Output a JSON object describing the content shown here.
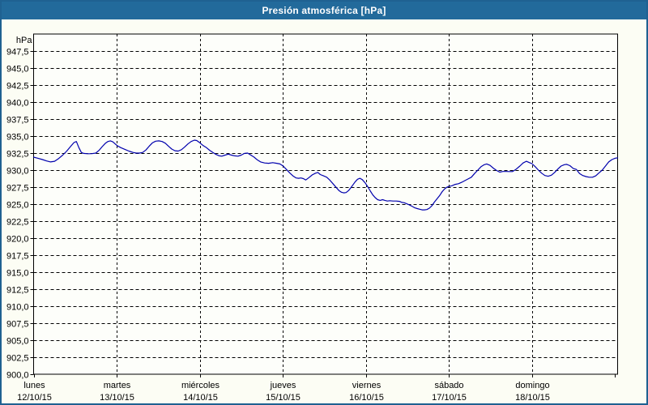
{
  "title_bar": {
    "text": "Presión atmosférica [hPa]",
    "background": "#226a9b",
    "text_color": "#ffffff"
  },
  "window": {
    "border_color": "#1f6191",
    "background": "#fcfdf4"
  },
  "chart_data": {
    "type": "line",
    "title": "Presión atmosférica [hPa]",
    "unit_label": "hPa",
    "ylabel": "hPa",
    "ylim": [
      900,
      950
    ],
    "ytick_step": 2.5,
    "yticks": [
      {
        "value": 947.5,
        "label": "947,5"
      },
      {
        "value": 945.0,
        "label": "945,0"
      },
      {
        "value": 942.5,
        "label": "942,5"
      },
      {
        "value": 940.0,
        "label": "940,0"
      },
      {
        "value": 937.5,
        "label": "937,5"
      },
      {
        "value": 935.0,
        "label": "935,0"
      },
      {
        "value": 932.5,
        "label": "932,5"
      },
      {
        "value": 930.0,
        "label": "930,0"
      },
      {
        "value": 927.5,
        "label": "927,5"
      },
      {
        "value": 925.0,
        "label": "925,0"
      },
      {
        "value": 922.5,
        "label": "922,5"
      },
      {
        "value": 920.0,
        "label": "920,0"
      },
      {
        "value": 917.5,
        "label": "917,5"
      },
      {
        "value": 915.0,
        "label": "915,0"
      },
      {
        "value": 912.5,
        "label": "912,5"
      },
      {
        "value": 910.0,
        "label": "910,0"
      },
      {
        "value": 907.5,
        "label": "907,5"
      },
      {
        "value": 905.0,
        "label": "905,0"
      },
      {
        "value": 902.5,
        "label": "902,5"
      },
      {
        "value": 900.0,
        "label": "900,0"
      }
    ],
    "x_days": [
      {
        "name": "lunes",
        "date": "12/10/15"
      },
      {
        "name": "martes",
        "date": "13/10/15"
      },
      {
        "name": "miércoles",
        "date": "14/10/15"
      },
      {
        "name": "jueves",
        "date": "15/10/15"
      },
      {
        "name": "viernes",
        "date": "16/10/15"
      },
      {
        "name": "sábado",
        "date": "17/10/15"
      },
      {
        "name": "domingo",
        "date": "18/10/15"
      }
    ],
    "total_days": 7.03,
    "grid": "dashed",
    "legend_position": "none",
    "line_color": "#0000ad",
    "series": [
      {
        "name": "Presión atmosférica",
        "points": [
          [
            0,
            931.9
          ],
          [
            0.049,
            931.75
          ],
          [
            0.107,
            931.55
          ],
          [
            0.156,
            931.35
          ],
          [
            0.204,
            931.2
          ],
          [
            0.253,
            931.3
          ],
          [
            0.301,
            931.7
          ],
          [
            0.35,
            932.2
          ],
          [
            0.399,
            932.8
          ],
          [
            0.447,
            933.5
          ],
          [
            0.486,
            934.05
          ],
          [
            0.515,
            934.2
          ],
          [
            0.545,
            933.3
          ],
          [
            0.574,
            932.6
          ],
          [
            0.603,
            932.45
          ],
          [
            0.651,
            932.4
          ],
          [
            0.7,
            932.42
          ],
          [
            0.749,
            932.5
          ],
          [
            0.788,
            932.9
          ],
          [
            0.826,
            933.45
          ],
          [
            0.865,
            933.95
          ],
          [
            0.894,
            934.2
          ],
          [
            0.924,
            934.3
          ],
          [
            0.953,
            934.15
          ],
          [
            0.982,
            933.85
          ],
          [
            1.011,
            933.55
          ],
          [
            1.05,
            933.3
          ],
          [
            1.099,
            933.05
          ],
          [
            1.147,
            932.8
          ],
          [
            1.196,
            932.6
          ],
          [
            1.235,
            932.5
          ],
          [
            1.274,
            932.5
          ],
          [
            1.313,
            932.6
          ],
          [
            1.351,
            932.95
          ],
          [
            1.39,
            933.5
          ],
          [
            1.429,
            934.0
          ],
          [
            1.468,
            934.25
          ],
          [
            1.507,
            934.3
          ],
          [
            1.546,
            934.2
          ],
          [
            1.585,
            933.95
          ],
          [
            1.624,
            933.5
          ],
          [
            1.662,
            933.1
          ],
          [
            1.701,
            932.85
          ],
          [
            1.74,
            932.8
          ],
          [
            1.779,
            933.0
          ],
          [
            1.818,
            933.4
          ],
          [
            1.857,
            933.85
          ],
          [
            1.896,
            934.2
          ],
          [
            1.935,
            934.4
          ],
          [
            1.964,
            934.35
          ],
          [
            2.003,
            934.0
          ],
          [
            2.042,
            933.6
          ],
          [
            2.081,
            933.3
          ],
          [
            2.12,
            932.9
          ],
          [
            2.158,
            932.6
          ],
          [
            2.197,
            932.3
          ],
          [
            2.236,
            932.1
          ],
          [
            2.265,
            932.05
          ],
          [
            2.304,
            932.2
          ],
          [
            2.343,
            932.35
          ],
          [
            2.382,
            932.2
          ],
          [
            2.421,
            932.1
          ],
          [
            2.46,
            932.05
          ],
          [
            2.499,
            932.2
          ],
          [
            2.538,
            932.45
          ],
          [
            2.576,
            932.5
          ],
          [
            2.615,
            932.2
          ],
          [
            2.654,
            931.9
          ],
          [
            2.693,
            931.5
          ],
          [
            2.732,
            931.2
          ],
          [
            2.781,
            931.05
          ],
          [
            2.829,
            931.0
          ],
          [
            2.878,
            931.1
          ],
          [
            2.926,
            931.0
          ],
          [
            2.965,
            930.9
          ],
          [
            3.004,
            930.6
          ],
          [
            3.043,
            930.1
          ],
          [
            3.082,
            929.6
          ],
          [
            3.121,
            929.15
          ],
          [
            3.16,
            928.85
          ],
          [
            3.189,
            928.8
          ],
          [
            3.218,
            928.85
          ],
          [
            3.247,
            928.75
          ],
          [
            3.276,
            928.55
          ],
          [
            3.315,
            928.9
          ],
          [
            3.354,
            929.3
          ],
          [
            3.393,
            929.55
          ],
          [
            3.422,
            929.65
          ],
          [
            3.451,
            929.35
          ],
          [
            3.49,
            929.15
          ],
          [
            3.529,
            928.95
          ],
          [
            3.568,
            928.5
          ],
          [
            3.607,
            927.95
          ],
          [
            3.646,
            927.4
          ],
          [
            3.675,
            927.0
          ],
          [
            3.704,
            926.75
          ],
          [
            3.733,
            926.65
          ],
          [
            3.762,
            926.7
          ],
          [
            3.792,
            927.0
          ],
          [
            3.83,
            927.6
          ],
          [
            3.869,
            928.25
          ],
          [
            3.899,
            928.65
          ],
          [
            3.928,
            928.8
          ],
          [
            3.957,
            928.6
          ],
          [
            3.996,
            928.05
          ],
          [
            4.025,
            927.5
          ],
          [
            4.054,
            926.9
          ],
          [
            4.083,
            926.35
          ],
          [
            4.112,
            925.95
          ],
          [
            4.141,
            925.65
          ],
          [
            4.171,
            925.55
          ],
          [
            4.2,
            925.65
          ],
          [
            4.229,
            925.55
          ],
          [
            4.258,
            925.45
          ],
          [
            4.287,
            925.5
          ],
          [
            4.326,
            925.45
          ],
          [
            4.365,
            925.45
          ],
          [
            4.404,
            925.4
          ],
          [
            4.433,
            925.25
          ],
          [
            4.462,
            925.2
          ],
          [
            4.491,
            925.05
          ],
          [
            4.52,
            924.9
          ],
          [
            4.559,
            924.65
          ],
          [
            4.589,
            924.45
          ],
          [
            4.618,
            924.35
          ],
          [
            4.647,
            924.25
          ],
          [
            4.676,
            924.15
          ],
          [
            4.705,
            924.15
          ],
          [
            4.734,
            924.2
          ],
          [
            4.764,
            924.4
          ],
          [
            4.793,
            924.75
          ],
          [
            4.822,
            925.25
          ],
          [
            4.851,
            925.7
          ],
          [
            4.89,
            926.3
          ],
          [
            4.919,
            926.85
          ],
          [
            4.948,
            927.25
          ],
          [
            4.977,
            927.5
          ],
          [
            4.997,
            927.6
          ],
          [
            5.036,
            927.7
          ],
          [
            5.075,
            927.9
          ],
          [
            5.114,
            928.0
          ],
          [
            5.152,
            928.2
          ],
          [
            5.191,
            928.45
          ],
          [
            5.23,
            928.7
          ],
          [
            5.269,
            928.95
          ],
          [
            5.308,
            929.5
          ],
          [
            5.347,
            930.0
          ],
          [
            5.386,
            930.5
          ],
          [
            5.425,
            930.8
          ],
          [
            5.454,
            930.9
          ],
          [
            5.493,
            930.7
          ],
          [
            5.532,
            930.3
          ],
          [
            5.571,
            929.95
          ],
          [
            5.61,
            929.7
          ],
          [
            5.649,
            929.8
          ],
          [
            5.687,
            929.8
          ],
          [
            5.726,
            929.78
          ],
          [
            5.765,
            929.78
          ],
          [
            5.804,
            930.1
          ],
          [
            5.853,
            930.6
          ],
          [
            5.892,
            931.05
          ],
          [
            5.931,
            931.3
          ],
          [
            5.969,
            931.1
          ],
          [
            5.999,
            930.95
          ],
          [
            6.038,
            930.5
          ],
          [
            6.076,
            930.0
          ],
          [
            6.115,
            929.55
          ],
          [
            6.154,
            929.2
          ],
          [
            6.193,
            929.1
          ],
          [
            6.232,
            929.25
          ],
          [
            6.271,
            929.65
          ],
          [
            6.31,
            930.15
          ],
          [
            6.349,
            930.6
          ],
          [
            6.388,
            930.8
          ],
          [
            6.417,
            930.85
          ],
          [
            6.456,
            930.65
          ],
          [
            6.495,
            930.25
          ],
          [
            6.534,
            930.1
          ],
          [
            6.572,
            929.5
          ],
          [
            6.611,
            929.2
          ],
          [
            6.65,
            929.05
          ],
          [
            6.689,
            928.95
          ],
          [
            6.728,
            928.95
          ],
          [
            6.767,
            929.15
          ],
          [
            6.806,
            929.6
          ],
          [
            6.845,
            930.0
          ],
          [
            6.884,
            930.6
          ],
          [
            6.923,
            931.2
          ],
          [
            6.962,
            931.55
          ],
          [
            7.001,
            931.75
          ],
          [
            7.03,
            931.8
          ]
        ]
      }
    ]
  }
}
